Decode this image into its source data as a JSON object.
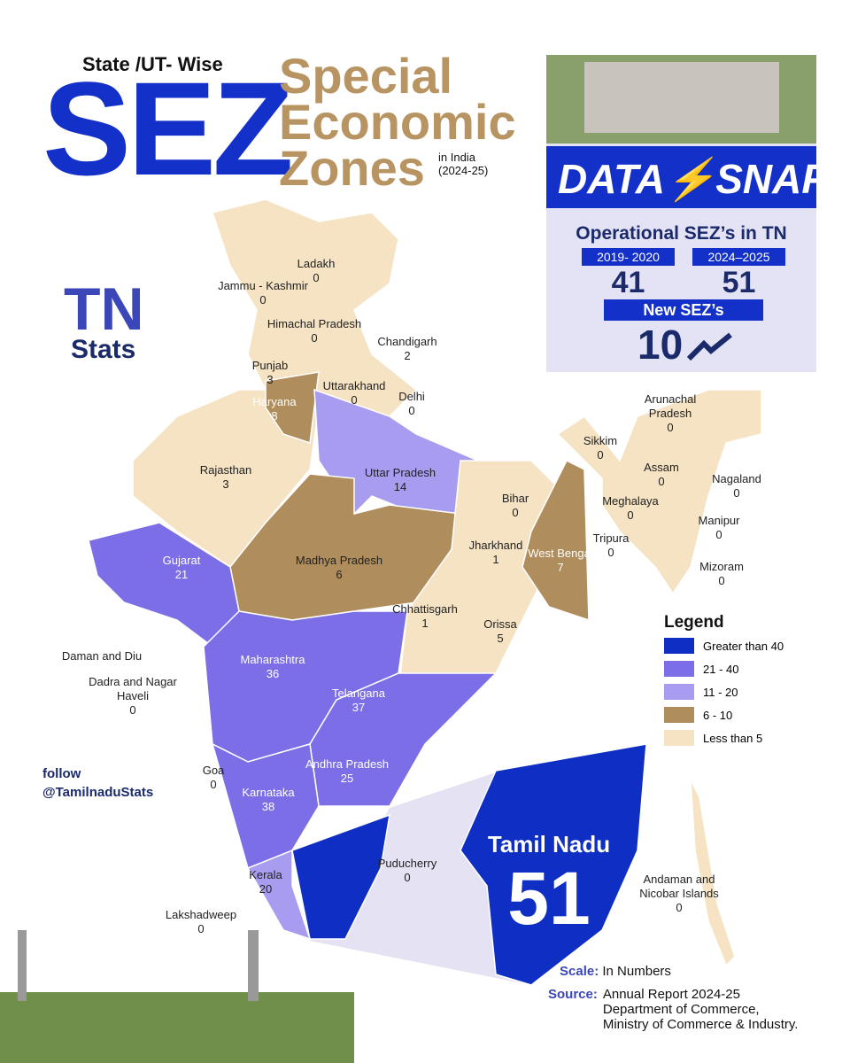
{
  "header": {
    "kicker": "State /UT- Wise",
    "acronym": "SEZ",
    "title_lines": [
      "Special",
      "Economic",
      "Zones"
    ],
    "subtitle_lines": [
      "in India",
      "(2024-25)"
    ]
  },
  "logo": {
    "top": "TN",
    "bottom": "Stats"
  },
  "datasnap": {
    "brand_left": "DATA",
    "brand_right": "SNAP",
    "heading": "Operational SEZ’s in TN",
    "periods": [
      {
        "label": "2019- 2020",
        "value": 41
      },
      {
        "label": "2024–2025",
        "value": 51
      }
    ],
    "new_label": "New SEZ’s",
    "new_value": 10
  },
  "states": [
    {
      "name": "Ladakh",
      "value": 0
    },
    {
      "name": "Jammu - Kashmir",
      "value": 0
    },
    {
      "name": "Himachal Pradesh",
      "value": 0
    },
    {
      "name": "Chandigarh",
      "value": 2
    },
    {
      "name": "Punjab",
      "value": 3
    },
    {
      "name": "Uttarakhand",
      "value": 0
    },
    {
      "name": "Delhi",
      "value": 0
    },
    {
      "name": "Haryana",
      "value": 8
    },
    {
      "name": "Rajasthan",
      "value": 3
    },
    {
      "name": "Uttar Pradesh",
      "value": 14
    },
    {
      "name": "Bihar",
      "value": 0
    },
    {
      "name": "Arunachal Pradesh",
      "value": 0
    },
    {
      "name": "Sikkim",
      "value": 0
    },
    {
      "name": "Assam",
      "value": 0
    },
    {
      "name": "Nagaland",
      "value": 0
    },
    {
      "name": "Meghalaya",
      "value": 0
    },
    {
      "name": "Manipur",
      "value": 0
    },
    {
      "name": "Tripura",
      "value": 0
    },
    {
      "name": "Mizoram",
      "value": 0
    },
    {
      "name": "Gujarat",
      "value": 21
    },
    {
      "name": "Madhya Pradesh",
      "value": 6
    },
    {
      "name": "Jharkhand",
      "value": 1
    },
    {
      "name": "West Bengal",
      "value": 7
    },
    {
      "name": "Chhattisgarh",
      "value": 1
    },
    {
      "name": "Orissa",
      "value": 5
    },
    {
      "name": "Daman and Diu"
    },
    {
      "name": "Dadra and Nagar Haveli",
      "value": 0
    },
    {
      "name": "Maharashtra",
      "value": 36
    },
    {
      "name": "Telangana",
      "value": 37
    },
    {
      "name": "Goa",
      "value": 0
    },
    {
      "name": "Andhra Pradesh",
      "value": 25
    },
    {
      "name": "Karnataka",
      "value": 38
    },
    {
      "name": "Kerala",
      "value": 20
    },
    {
      "name": "Puducherry",
      "value": 0
    },
    {
      "name": "Lakshadweep",
      "value": 0
    },
    {
      "name": "Andaman and Nicobar Islands",
      "value": 0
    }
  ],
  "highlight": {
    "name": "Tamil Nadu",
    "value": 51
  },
  "legend": {
    "title": "Legend",
    "items": [
      {
        "label": "Greater than 40",
        "color": "#0f2fc4"
      },
      {
        "label": "21 - 40",
        "color": "#7b6ee6"
      },
      {
        "label": "11 - 20",
        "color": "#a79cf0"
      },
      {
        "label": "6 - 10",
        "color": "#b08d5c"
      },
      {
        "label": "Less than 5",
        "color": "#f5e3c3"
      }
    ]
  },
  "follow": {
    "label": "follow",
    "handle": "@TamilnaduStats"
  },
  "scale": {
    "label": "Scale:",
    "text": "In Numbers"
  },
  "source": {
    "label": "Source:",
    "lines": [
      "Annual Report 2024-25",
      "Department of Commerce,",
      "Ministry of Commerce & Industry."
    ]
  }
}
